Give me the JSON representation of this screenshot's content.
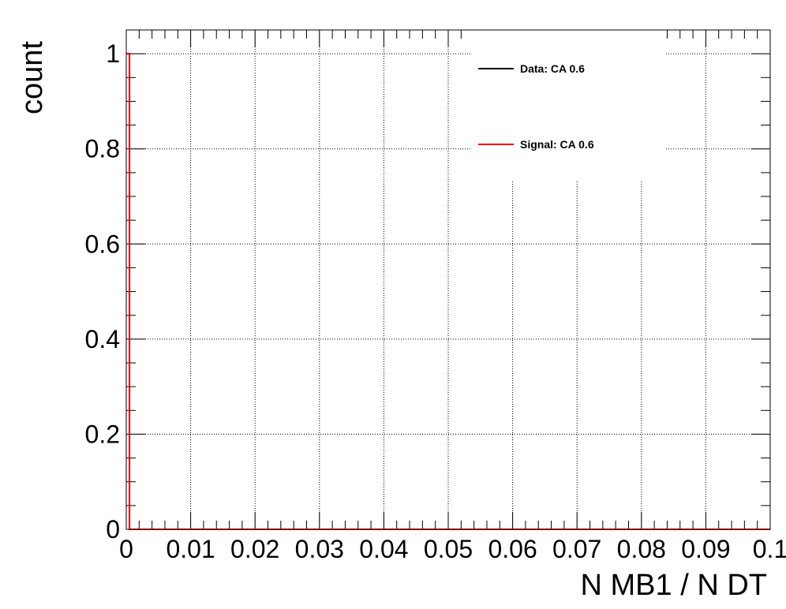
{
  "chart_data": {
    "type": "line",
    "xlabel": "N MB1 / N DT",
    "ylabel": "count",
    "xlim": [
      0,
      0.1
    ],
    "ylim": [
      0,
      1.05
    ],
    "x_ticks": [
      0,
      0.01,
      0.02,
      0.03,
      0.04,
      0.05,
      0.06,
      0.07,
      0.08,
      0.09,
      0.1
    ],
    "x_tick_labels": [
      "0",
      "0.01",
      "0.02",
      "0.03",
      "0.04",
      "0.05",
      "0.06",
      "0.07",
      "0.08",
      "0.09",
      "0.1"
    ],
    "y_ticks": [
      0,
      0.2,
      0.4,
      0.6,
      0.8,
      1
    ],
    "y_tick_labels": [
      "0",
      "0.2",
      "0.4",
      "0.6",
      "0.8",
      "1"
    ],
    "grid": true,
    "legend_position": "top-right",
    "series": [
      {
        "name": "Data: CA 0.6",
        "color": "#000000",
        "x": [
          0,
          0.0005,
          0.0005,
          0.1
        ],
        "y": [
          1,
          1,
          0,
          0
        ]
      },
      {
        "name": "Signal: CA 0.6",
        "color": "#ff0000",
        "x": [
          0,
          0.0005,
          0.0005,
          0.1
        ],
        "y": [
          1,
          1,
          0,
          0
        ]
      }
    ]
  }
}
